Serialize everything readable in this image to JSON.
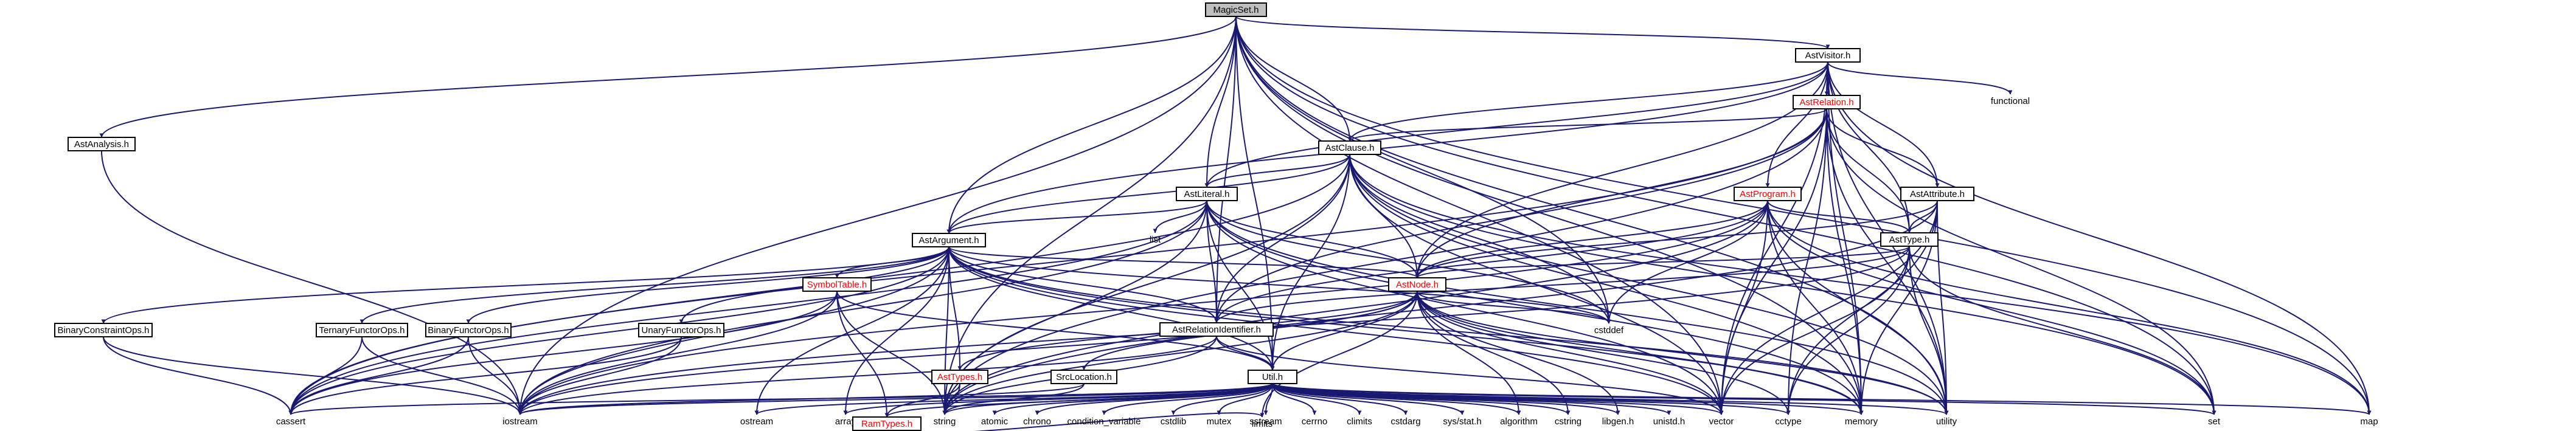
{
  "graph": {
    "colors": {
      "edge": "#191970",
      "node_fill": "#ffffff",
      "root_fill": "#bfbfbf",
      "node_border": "#000000",
      "red_border": "#ff0000",
      "red_text": "#ff0000"
    },
    "nodes": [
      {
        "id": "n_magicset",
        "label": "MagicSet.h",
        "style": "root"
      },
      {
        "id": "n_astvisitor",
        "label": "AstVisitor.h",
        "style": "box"
      },
      {
        "id": "n_astanalysis",
        "label": "AstAnalysis.h",
        "style": "box"
      },
      {
        "id": "n_astrelation",
        "label": "AstRelation.h",
        "style": "red"
      },
      {
        "id": "n_functional",
        "label": "functional",
        "style": "plain"
      },
      {
        "id": "n_astclause",
        "label": "AstClause.h",
        "style": "box"
      },
      {
        "id": "n_astliteral",
        "label": "AstLiteral.h",
        "style": "box"
      },
      {
        "id": "n_astprogram",
        "label": "AstProgram.h",
        "style": "red"
      },
      {
        "id": "n_astattribute",
        "label": "AstAttribute.h",
        "style": "box"
      },
      {
        "id": "n_list",
        "label": "list",
        "style": "plain"
      },
      {
        "id": "n_asttype",
        "label": "AstType.h",
        "style": "box"
      },
      {
        "id": "n_astargument",
        "label": "AstArgument.h",
        "style": "box"
      },
      {
        "id": "n_symboltable",
        "label": "SymbolTable.h",
        "style": "red"
      },
      {
        "id": "n_astnode",
        "label": "AstNode.h",
        "style": "red"
      },
      {
        "id": "n_astrelid",
        "label": "AstRelationIdentifier.h",
        "style": "box"
      },
      {
        "id": "n_binconst",
        "label": "BinaryConstraintOps.h",
        "style": "box"
      },
      {
        "id": "n_ternary",
        "label": "TernaryFunctorOps.h",
        "style": "box"
      },
      {
        "id": "n_binfunc",
        "label": "BinaryFunctorOps.h",
        "style": "box"
      },
      {
        "id": "n_unary",
        "label": "UnaryFunctorOps.h",
        "style": "box"
      },
      {
        "id": "n_asttypes",
        "label": "AstTypes.h",
        "style": "red"
      },
      {
        "id": "n_srclocation",
        "label": "SrcLocation.h",
        "style": "box"
      },
      {
        "id": "n_util",
        "label": "Util.h",
        "style": "box"
      },
      {
        "id": "n_cstddef",
        "label": "cstddef",
        "style": "plain"
      },
      {
        "id": "n_cassert",
        "label": "cassert",
        "style": "plain"
      },
      {
        "id": "n_iostream",
        "label": "iostream",
        "style": "plain"
      },
      {
        "id": "n_ostream",
        "label": "ostream",
        "style": "plain"
      },
      {
        "id": "n_array",
        "label": "array",
        "style": "plain"
      },
      {
        "id": "n_ramtypes",
        "label": "RamTypes.h",
        "style": "red"
      },
      {
        "id": "n_string",
        "label": "string",
        "style": "plain"
      },
      {
        "id": "n_atomic",
        "label": "atomic",
        "style": "plain"
      },
      {
        "id": "n_chrono",
        "label": "chrono",
        "style": "plain"
      },
      {
        "id": "n_condvar",
        "label": "condition_variable",
        "style": "plain"
      },
      {
        "id": "n_cstdlib",
        "label": "cstdlib",
        "style": "plain"
      },
      {
        "id": "n_mutex",
        "label": "mutex",
        "style": "plain"
      },
      {
        "id": "n_sstream",
        "label": "sstream",
        "style": "plain"
      },
      {
        "id": "n_cerrno",
        "label": "cerrno",
        "style": "plain"
      },
      {
        "id": "n_climits",
        "label": "climits",
        "style": "plain"
      },
      {
        "id": "n_cstdarg",
        "label": "cstdarg",
        "style": "plain"
      },
      {
        "id": "n_sysstat",
        "label": "sys/stat.h",
        "style": "plain"
      },
      {
        "id": "n_algorithm",
        "label": "algorithm",
        "style": "plain"
      },
      {
        "id": "n_cstring",
        "label": "cstring",
        "style": "plain"
      },
      {
        "id": "n_libgen",
        "label": "libgen.h",
        "style": "plain"
      },
      {
        "id": "n_unistd",
        "label": "unistd.h",
        "style": "plain"
      },
      {
        "id": "n_vector",
        "label": "vector",
        "style": "plain"
      },
      {
        "id": "n_cctype",
        "label": "cctype",
        "style": "plain"
      },
      {
        "id": "n_memory",
        "label": "memory",
        "style": "plain"
      },
      {
        "id": "n_utility",
        "label": "utility",
        "style": "plain"
      },
      {
        "id": "n_set",
        "label": "set",
        "style": "plain"
      },
      {
        "id": "n_map",
        "label": "map",
        "style": "plain"
      },
      {
        "id": "n_limits",
        "label": "limits",
        "style": "plain"
      }
    ],
    "edges": [
      [
        "n_magicset",
        "n_astvisitor"
      ],
      [
        "n_magicset",
        "n_astanalysis"
      ],
      [
        "n_magicset",
        "n_astclause"
      ],
      [
        "n_magicset",
        "n_astliteral"
      ],
      [
        "n_magicset",
        "n_astargument"
      ],
      [
        "n_magicset",
        "n_astrelid"
      ],
      [
        "n_magicset",
        "n_util"
      ],
      [
        "n_magicset",
        "n_iostream"
      ],
      [
        "n_magicset",
        "n_string"
      ],
      [
        "n_magicset",
        "n_vector"
      ],
      [
        "n_magicset",
        "n_set"
      ],
      [
        "n_magicset",
        "n_map"
      ],
      [
        "n_magicset",
        "n_cstddef"
      ],
      [
        "n_magicset",
        "n_memory"
      ],
      [
        "n_magicset",
        "n_utility"
      ],
      [
        "n_astvisitor",
        "n_astrelation"
      ],
      [
        "n_astvisitor",
        "n_functional"
      ],
      [
        "n_astvisitor",
        "n_astclause"
      ],
      [
        "n_astvisitor",
        "n_astliteral"
      ],
      [
        "n_astvisitor",
        "n_astprogram"
      ],
      [
        "n_astvisitor",
        "n_astattribute"
      ],
      [
        "n_astvisitor",
        "n_asttype"
      ],
      [
        "n_astvisitor",
        "n_astargument"
      ],
      [
        "n_astvisitor",
        "n_astnode"
      ],
      [
        "n_astvisitor",
        "n_vector"
      ],
      [
        "n_astvisitor",
        "n_memory"
      ],
      [
        "n_astvisitor",
        "n_utility"
      ],
      [
        "n_astvisitor",
        "n_map"
      ],
      [
        "n_astanalysis",
        "n_iostream"
      ],
      [
        "n_astrelation",
        "n_astclause"
      ],
      [
        "n_astrelation",
        "n_astattribute"
      ],
      [
        "n_astrelation",
        "n_astnode"
      ],
      [
        "n_astrelation",
        "n_astrelid"
      ],
      [
        "n_astrelation",
        "n_asttype"
      ],
      [
        "n_astrelation",
        "n_cassert"
      ],
      [
        "n_astrelation",
        "n_cctype"
      ],
      [
        "n_astrelation",
        "n_memory"
      ],
      [
        "n_astrelation",
        "n_set"
      ],
      [
        "n_astrelation",
        "n_utility"
      ],
      [
        "n_astrelation",
        "n_vector"
      ],
      [
        "n_astrelation",
        "n_string"
      ],
      [
        "n_astclause",
        "n_astliteral"
      ],
      [
        "n_astclause",
        "n_astargument"
      ],
      [
        "n_astclause",
        "n_astnode"
      ],
      [
        "n_astclause",
        "n_astrelid"
      ],
      [
        "n_astclause",
        "n_util"
      ],
      [
        "n_astclause",
        "n_cassert"
      ],
      [
        "n_astclause",
        "n_cstddef"
      ],
      [
        "n_astclause",
        "n_memory"
      ],
      [
        "n_astclause",
        "n_utility"
      ],
      [
        "n_astclause",
        "n_vector"
      ],
      [
        "n_astclause",
        "n_set"
      ],
      [
        "n_astclause",
        "n_map"
      ],
      [
        "n_astclause",
        "n_string"
      ],
      [
        "n_astliteral",
        "n_list"
      ],
      [
        "n_astliteral",
        "n_astargument"
      ],
      [
        "n_astliteral",
        "n_astnode"
      ],
      [
        "n_astliteral",
        "n_astrelid"
      ],
      [
        "n_astliteral",
        "n_util"
      ],
      [
        "n_astliteral",
        "n_cstddef"
      ],
      [
        "n_astliteral",
        "n_iostream"
      ],
      [
        "n_astliteral",
        "n_memory"
      ],
      [
        "n_astliteral",
        "n_string"
      ],
      [
        "n_astliteral",
        "n_vector"
      ],
      [
        "n_astliteral",
        "n_utility"
      ],
      [
        "n_astliteral",
        "n_cassert"
      ],
      [
        "n_astprogram",
        "n_asttype"
      ],
      [
        "n_astprogram",
        "n_astnode"
      ],
      [
        "n_astprogram",
        "n_astrelid"
      ],
      [
        "n_astprogram",
        "n_cstddef"
      ],
      [
        "n_astprogram",
        "n_vector"
      ],
      [
        "n_astprogram",
        "n_memory"
      ],
      [
        "n_astprogram",
        "n_map"
      ],
      [
        "n_astprogram",
        "n_set"
      ],
      [
        "n_astprogram",
        "n_utility"
      ],
      [
        "n_astprogram",
        "n_string"
      ],
      [
        "n_astprogram",
        "n_iostream"
      ],
      [
        "n_astattribute",
        "n_asttype"
      ],
      [
        "n_astattribute",
        "n_astnode"
      ],
      [
        "n_astattribute",
        "n_cctype"
      ],
      [
        "n_astattribute",
        "n_vector"
      ],
      [
        "n_astattribute",
        "n_utility"
      ],
      [
        "n_astattribute",
        "n_string"
      ],
      [
        "n_astattribute",
        "n_memory"
      ],
      [
        "n_asttype",
        "n_astnode"
      ],
      [
        "n_asttype",
        "n_astrelid"
      ],
      [
        "n_asttype",
        "n_vector"
      ],
      [
        "n_asttype",
        "n_set"
      ],
      [
        "n_asttype",
        "n_utility"
      ],
      [
        "n_asttype",
        "n_cctype"
      ],
      [
        "n_asttype",
        "n_iostream"
      ],
      [
        "n_astargument",
        "n_symboltable"
      ],
      [
        "n_astargument",
        "n_astnode"
      ],
      [
        "n_astargument",
        "n_astrelid"
      ],
      [
        "n_astargument",
        "n_binconst"
      ],
      [
        "n_astargument",
        "n_ternary"
      ],
      [
        "n_astargument",
        "n_binfunc"
      ],
      [
        "n_astargument",
        "n_unary"
      ],
      [
        "n_astargument",
        "n_asttypes"
      ],
      [
        "n_astargument",
        "n_util"
      ],
      [
        "n_astargument",
        "n_cstddef"
      ],
      [
        "n_astargument",
        "n_cassert"
      ],
      [
        "n_astargument",
        "n_iostream"
      ],
      [
        "n_astargument",
        "n_ostream"
      ],
      [
        "n_astargument",
        "n_array"
      ],
      [
        "n_astargument",
        "n_string"
      ],
      [
        "n_astargument",
        "n_memory"
      ],
      [
        "n_astargument",
        "n_vector"
      ],
      [
        "n_astargument",
        "n_utility"
      ],
      [
        "n_symboltable",
        "n_util"
      ],
      [
        "n_symboltable",
        "n_ramtypes"
      ],
      [
        "n_symboltable",
        "n_cassert"
      ],
      [
        "n_symboltable",
        "n_iostream"
      ],
      [
        "n_symboltable",
        "n_string"
      ],
      [
        "n_astnode",
        "n_asttypes"
      ],
      [
        "n_astnode",
        "n_srclocation"
      ],
      [
        "n_astnode",
        "n_util"
      ],
      [
        "n_astnode",
        "n_cstddef"
      ],
      [
        "n_astnode",
        "n_iostream"
      ],
      [
        "n_astnode",
        "n_memory"
      ],
      [
        "n_astnode",
        "n_string"
      ],
      [
        "n_astnode",
        "n_vector"
      ],
      [
        "n_astnode",
        "n_utility"
      ],
      [
        "n_astnode",
        "n_cctype"
      ],
      [
        "n_astnode",
        "n_limits"
      ],
      [
        "n_astnode",
        "n_algorithm"
      ],
      [
        "n_astnode",
        "n_libgen"
      ],
      [
        "n_astnode",
        "n_cstring"
      ],
      [
        "n_astrelid",
        "n_util"
      ],
      [
        "n_astrelid",
        "n_iostream"
      ],
      [
        "n_astrelid",
        "n_string"
      ],
      [
        "n_astrelid",
        "n_vector"
      ],
      [
        "n_binconst",
        "n_cassert"
      ],
      [
        "n_binconst",
        "n_iostream"
      ],
      [
        "n_ternary",
        "n_cassert"
      ],
      [
        "n_ternary",
        "n_iostream"
      ],
      [
        "n_binfunc",
        "n_cassert"
      ],
      [
        "n_binfunc",
        "n_iostream"
      ],
      [
        "n_unary",
        "n_cassert"
      ],
      [
        "n_unary",
        "n_iostream"
      ],
      [
        "n_asttypes",
        "n_ramtypes"
      ],
      [
        "n_asttypes",
        "n_string"
      ],
      [
        "n_srclocation",
        "n_iostream"
      ],
      [
        "n_srclocation",
        "n_string"
      ],
      [
        "n_ramtypes",
        "n_limits"
      ],
      [
        "n_util",
        "n_iostream"
      ],
      [
        "n_util",
        "n_ostream"
      ],
      [
        "n_util",
        "n_array"
      ],
      [
        "n_util",
        "n_string"
      ],
      [
        "n_util",
        "n_atomic"
      ],
      [
        "n_util",
        "n_chrono"
      ],
      [
        "n_util",
        "n_condvar"
      ],
      [
        "n_util",
        "n_cstdlib"
      ],
      [
        "n_util",
        "n_mutex"
      ],
      [
        "n_util",
        "n_sstream"
      ],
      [
        "n_util",
        "n_cerrno"
      ],
      [
        "n_util",
        "n_climits"
      ],
      [
        "n_util",
        "n_cstdarg"
      ],
      [
        "n_util",
        "n_sysstat"
      ],
      [
        "n_util",
        "n_algorithm"
      ],
      [
        "n_util",
        "n_cstring"
      ],
      [
        "n_util",
        "n_libgen"
      ],
      [
        "n_util",
        "n_unistd"
      ],
      [
        "n_util",
        "n_vector"
      ],
      [
        "n_util",
        "n_cctype"
      ],
      [
        "n_util",
        "n_memory"
      ],
      [
        "n_util",
        "n_utility"
      ],
      [
        "n_util",
        "n_set"
      ],
      [
        "n_util",
        "n_map"
      ],
      [
        "n_util",
        "n_ramtypes"
      ],
      [
        "n_util",
        "n_cassert"
      ]
    ]
  }
}
